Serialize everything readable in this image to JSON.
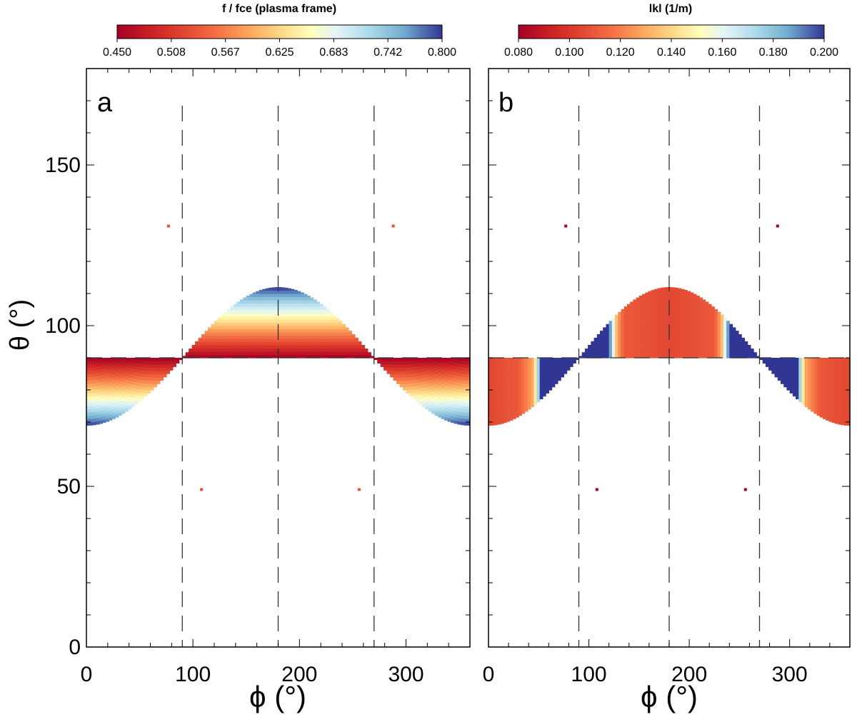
{
  "chart_data": [
    {
      "type": "heatmap",
      "panel_label": "a",
      "title": "",
      "xlabel": "ϕ (°)",
      "ylabel": "θ (°)",
      "xlim": [
        0,
        360
      ],
      "ylim": [
        0,
        180
      ],
      "xticks": [
        0,
        100,
        200,
        300
      ],
      "yticks": [
        0,
        50,
        100,
        150
      ],
      "colorbar": {
        "label": "f / fce (plasma frame)",
        "min": 0.45,
        "max": 0.8,
        "ticks": [
          "0.450",
          "0.508",
          "0.567",
          "0.625",
          "0.683",
          "0.742",
          "0.800"
        ],
        "colormap": "red-yellow-white-blue"
      },
      "regions": [
        {
          "name": "upper-lobe",
          "phi_range": [
            90,
            270
          ],
          "theta_base": 90,
          "theta_peak": 112,
          "peak_phi": 180,
          "value_at_base": 0.45,
          "value_at_edge": 0.8,
          "gradient": "theta"
        },
        {
          "name": "lower-left-lobe",
          "phi_range": [
            0,
            90
          ],
          "theta_base": 90,
          "theta_peak": 69,
          "peak_phi": 0,
          "value_at_base": 0.45,
          "value_at_edge": 0.8,
          "gradient": "theta"
        },
        {
          "name": "lower-right-lobe",
          "phi_range": [
            270,
            360
          ],
          "theta_base": 90,
          "theta_peak": 69,
          "peak_phi": 360,
          "value_at_base": 0.45,
          "value_at_edge": 0.8,
          "gradient": "theta"
        }
      ],
      "points": [
        {
          "phi": 77,
          "theta": 131,
          "value": 0.53
        },
        {
          "phi": 288,
          "theta": 131,
          "value": 0.53
        },
        {
          "phi": 108,
          "theta": 49,
          "value": 0.53
        },
        {
          "phi": 256,
          "theta": 49,
          "value": 0.53
        }
      ],
      "reference_lines": {
        "phi": [
          90,
          180,
          270
        ],
        "theta": [
          90
        ]
      }
    },
    {
      "type": "heatmap",
      "panel_label": "b",
      "title": "",
      "xlabel": "ϕ (°)",
      "ylabel": "",
      "xlim": [
        0,
        360
      ],
      "ylim": [
        0,
        180
      ],
      "xticks": [
        0,
        100,
        200,
        300
      ],
      "yticks": [
        0,
        50,
        100,
        150
      ],
      "colorbar": {
        "label": "lkl (1/m)",
        "min": 0.08,
        "max": 0.2,
        "ticks": [
          "0.080",
          "0.100",
          "0.120",
          "0.140",
          "0.160",
          "0.180",
          "0.200"
        ],
        "colormap": "red-yellow-white-blue"
      },
      "regions": [
        {
          "name": "upper-lobe",
          "phi_range": [
            90,
            270
          ],
          "theta_base": 90,
          "theta_peak": 112,
          "peak_phi": 180,
          "gradient": "phi",
          "value_profile": [
            [
              90,
              0.2
            ],
            [
              120,
              0.2
            ],
            [
              128,
              0.13
            ],
            [
              135,
              0.11
            ],
            [
              180,
              0.105
            ],
            [
              225,
              0.11
            ],
            [
              232,
              0.13
            ],
            [
              240,
              0.2
            ],
            [
              270,
              0.2
            ]
          ]
        },
        {
          "name": "lower-left-lobe",
          "phi_range": [
            0,
            90
          ],
          "theta_base": 90,
          "theta_peak": 69,
          "peak_phi": 0,
          "gradient": "phi",
          "value_profile": [
            [
              0,
              0.105
            ],
            [
              30,
              0.11
            ],
            [
              45,
              0.13
            ],
            [
              52,
              0.2
            ],
            [
              90,
              0.2
            ]
          ]
        },
        {
          "name": "lower-right-lobe",
          "phi_range": [
            270,
            360
          ],
          "theta_base": 90,
          "theta_peak": 69,
          "peak_phi": 360,
          "gradient": "phi",
          "value_profile": [
            [
              270,
              0.2
            ],
            [
              308,
              0.2
            ],
            [
              315,
              0.13
            ],
            [
              330,
              0.11
            ],
            [
              360,
              0.105
            ]
          ]
        }
      ],
      "points": [
        {
          "phi": 77,
          "theta": 131,
          "value": 0.08
        },
        {
          "phi": 288,
          "theta": 131,
          "value": 0.08
        },
        {
          "phi": 108,
          "theta": 49,
          "value": 0.08
        },
        {
          "phi": 256,
          "theta": 49,
          "value": 0.08
        }
      ],
      "reference_lines": {
        "phi": [
          90,
          180,
          270
        ],
        "theta": [
          90
        ]
      }
    }
  ]
}
